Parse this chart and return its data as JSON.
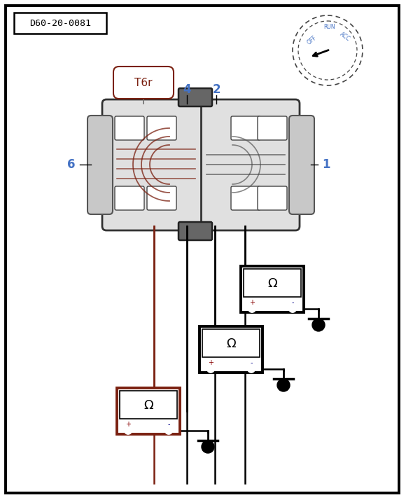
{
  "title_box_text": "D60-20-0081",
  "connector_label": "T6r",
  "pin_label_color": "#4472c4",
  "brown_color": "#7a2010",
  "ohm_symbol": "Ω",
  "bg_color": "#ffffff"
}
